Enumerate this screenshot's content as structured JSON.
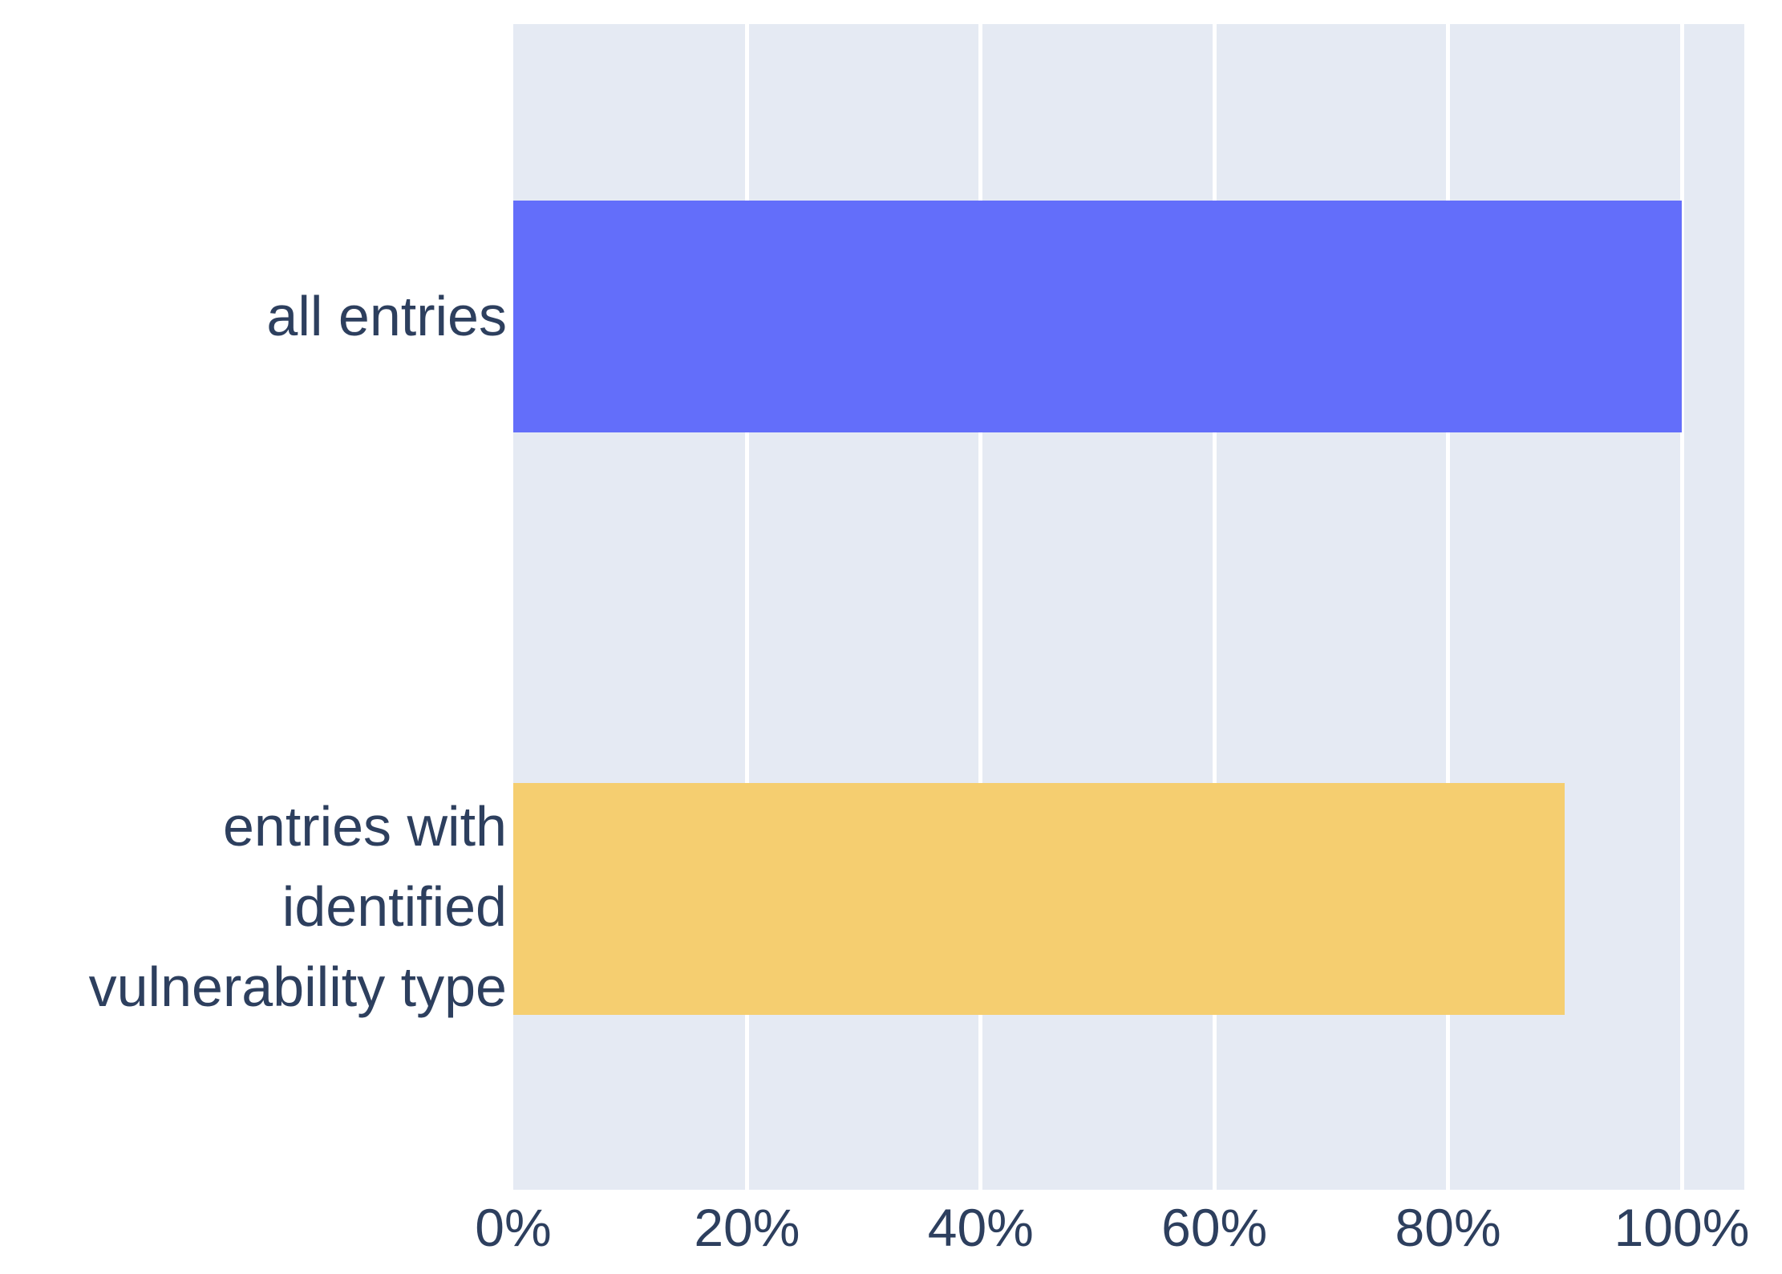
{
  "chart_data": {
    "type": "bar",
    "orientation": "horizontal",
    "title": "",
    "xlabel": "",
    "ylabel": "",
    "categories": [
      "all entries",
      "entries with identified vulnerability type"
    ],
    "category_display_lines": [
      [
        "all entries"
      ],
      [
        "entries with identified",
        "vulnerability type"
      ]
    ],
    "values": [
      100,
      90
    ],
    "values_unit": "percent",
    "x_tick_values": [
      0,
      20,
      40,
      60,
      80,
      100
    ],
    "x_tick_labels": [
      "0%",
      "20%",
      "40%",
      "60%",
      "80%",
      "100%"
    ],
    "xlim": [
      0,
      105.3
    ],
    "grid": true,
    "legend": false,
    "bar_colors": [
      "#636EFA",
      "#F5CE70"
    ],
    "plot_background": "#E5EAF3",
    "grid_color": "#FFFFFF",
    "figure_background": "#FFFFFF",
    "label_color": "#2D3F5E"
  }
}
